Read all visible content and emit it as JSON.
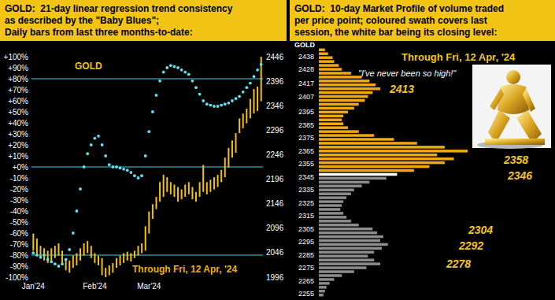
{
  "chart_data": [
    {
      "type": "combo",
      "title": [
        "GOLD:  21-day linear regression trend consistency",
        "as described by the \"Baby Blues\";",
        "Daily bars from last three months-to-date:"
      ],
      "date_label": "Through Fri, 12 Apr, '24",
      "categories": [
        "Jan'24",
        null,
        null,
        null,
        null,
        null,
        null,
        null,
        null,
        null,
        null,
        null,
        null,
        null,
        null,
        null,
        null,
        "Feb'24",
        null,
        null,
        null,
        null,
        null,
        null,
        null,
        null,
        null,
        null,
        null,
        null,
        null,
        null,
        "Mar'24",
        null,
        null,
        null,
        null,
        null,
        null,
        null,
        null,
        null,
        null,
        null,
        null,
        null,
        null,
        null,
        null,
        null,
        null,
        null,
        null,
        null,
        null,
        null,
        null,
        null,
        null,
        null,
        null,
        null,
        null,
        null
      ],
      "series": [
        {
          "name": "GOLD",
          "type": "range",
          "axis": "y2",
          "color": "#f5c400",
          "low": [
            2050,
            2040,
            2035,
            2030,
            2025,
            2030,
            2035,
            2040,
            2025,
            2010,
            2005,
            2015,
            2020,
            2030,
            2040,
            2045,
            2035,
            2025,
            2020,
            2000,
            1995,
            2000,
            2005,
            2015,
            2020,
            2025,
            2030,
            2028,
            2035,
            2040,
            2045,
            2050,
            2085,
            2115,
            2135,
            2150,
            2160,
            2170,
            2165,
            2160,
            2150,
            2155,
            2160,
            2165,
            2155,
            2150,
            2160,
            2170,
            2165,
            2170,
            2175,
            2180,
            2190,
            2200,
            2220,
            2240,
            2250,
            2290,
            2300,
            2310,
            2320,
            2330,
            2335,
            2355
          ],
          "high": [
            2085,
            2075,
            2060,
            2055,
            2050,
            2055,
            2060,
            2065,
            2050,
            2035,
            2030,
            2040,
            2045,
            2055,
            2065,
            2070,
            2060,
            2045,
            2040,
            2035,
            2015,
            2020,
            2025,
            2035,
            2040,
            2045,
            2048,
            2045,
            2050,
            2060,
            2065,
            2100,
            2130,
            2145,
            2160,
            2190,
            2205,
            2200,
            2190,
            2185,
            2180,
            2175,
            2185,
            2190,
            2180,
            2170,
            2190,
            2225,
            2190,
            2195,
            2200,
            2205,
            2215,
            2240,
            2260,
            2275,
            2290,
            2320,
            2330,
            2340,
            2360,
            2380,
            2385,
            2448
          ]
        },
        {
          "type": "scatter",
          "marker": "circle",
          "color": "#5ce1f2",
          "values": [
            -78,
            -80,
            -82,
            -80,
            -84,
            -86,
            -88,
            -90,
            -88,
            -84,
            -75,
            -60,
            -40,
            -20,
            0,
            12,
            20,
            26,
            28,
            20,
            10,
            2,
            0,
            0,
            -1,
            -2,
            -3,
            -5,
            -8,
            -10,
            -8,
            10,
            32,
            50,
            65,
            78,
            86,
            90,
            92,
            91,
            90,
            88,
            86,
            84,
            78,
            72,
            66,
            60,
            57,
            56,
            55,
            55,
            56,
            57,
            58,
            60,
            62,
            64,
            68,
            72,
            76,
            82,
            88,
            93
          ]
        }
      ],
      "ylim": [
        -100,
        100
      ],
      "yticks": [
        {
          "value": 100,
          "label": "+100%"
        },
        {
          "value": 90,
          "label": "+90%"
        },
        {
          "value": 80,
          "label": "+80%"
        },
        {
          "value": 70,
          "label": "+70%"
        },
        {
          "value": 60,
          "label": "+60%"
        },
        {
          "value": 50,
          "label": "+50%"
        },
        {
          "value": 40,
          "label": "+40%"
        },
        {
          "value": 30,
          "label": "+30%"
        },
        {
          "value": 20,
          "label": "+20%"
        },
        {
          "value": 10,
          "label": "+10%"
        },
        {
          "value": 0,
          "label": "+0%"
        },
        {
          "value": -10,
          "label": "-10%"
        },
        {
          "value": -20,
          "label": "-20%"
        },
        {
          "value": -30,
          "label": "-30%"
        },
        {
          "value": -40,
          "label": "-40%"
        },
        {
          "value": -50,
          "label": "-50%"
        },
        {
          "value": -60,
          "label": "-60%"
        },
        {
          "value": -70,
          "label": "-70%"
        },
        {
          "value": -80,
          "label": "-80%"
        },
        {
          "value": -90,
          "label": "-90%"
        },
        {
          "value": -100,
          "label": "-100%"
        }
      ],
      "y2lim": [
        1996,
        2446
      ],
      "y2ticks": [
        2446,
        2396,
        2346,
        2296,
        2246,
        2196,
        2146,
        2096,
        2046,
        1996
      ],
      "hlines": [
        80,
        0,
        -80
      ]
    },
    {
      "type": "bar",
      "orientation": "horizontal",
      "title": [
        "GOLD:  10-day Market Profile of volume traded",
        "per price point; coloured swath covers last",
        "session, the white bar being its closing level:"
      ],
      "ylabel": "GOLD",
      "date_label": "Through Fri, 12 Apr, '24",
      "quote": "\"I've never been so high!\"",
      "y": [
        2254,
        2257,
        2260,
        2263,
        2266,
        2269,
        2272,
        2275,
        2278,
        2281,
        2284,
        2287,
        2290,
        2293,
        2296,
        2299,
        2302,
        2305,
        2308,
        2311,
        2314,
        2317,
        2320,
        2323,
        2326,
        2329,
        2332,
        2335,
        2338,
        2341,
        2344,
        2347,
        2350,
        2353,
        2356,
        2359,
        2362,
        2365,
        2368,
        2371,
        2374,
        2377,
        2380,
        2383,
        2386,
        2389,
        2392,
        2395,
        2398,
        2401,
        2404,
        2407,
        2410,
        2413,
        2416,
        2419,
        2422,
        2425,
        2428,
        2431,
        2434,
        2437,
        2440,
        2443
      ],
      "values": [
        3,
        4,
        5,
        7,
        10,
        15,
        23,
        31,
        40,
        36,
        32,
        36,
        41,
        45,
        40,
        42,
        38,
        35,
        26,
        21,
        18,
        16,
        14,
        15,
        16,
        18,
        21,
        23,
        28,
        33,
        44,
        51,
        62,
        72,
        82,
        88,
        77,
        97,
        82,
        64,
        49,
        36,
        26,
        19,
        16,
        15,
        16,
        19,
        23,
        26,
        30,
        32,
        35,
        40,
        37,
        33,
        28,
        21,
        15,
        13,
        10,
        9,
        6,
        4
      ],
      "colors": [
        "#8c8c8c",
        "#8c8c8c",
        "#8c8c8c",
        "#8c8c8c",
        "#8c8c8c",
        "#8c8c8c",
        "#8c8c8c",
        "#8c8c8c",
        "#8c8c8c",
        "#8c8c8c",
        "#8c8c8c",
        "#8c8c8c",
        "#8c8c8c",
        "#8c8c8c",
        "#8c8c8c",
        "#8c8c8c",
        "#8c8c8c",
        "#8c8c8c",
        "#8c8c8c",
        "#8c8c8c",
        "#8c8c8c",
        "#8c8c8c",
        "#8c8c8c",
        "#8c8c8c",
        "#8c8c8c",
        "#8c8c8c",
        "#8c8c8c",
        "#8c8c8c",
        "#8c8c8c",
        "#8c8c8c",
        "#8c8c8c",
        "#ffffff",
        "#f0a810",
        "#f0a810",
        "#f0a810",
        "#f0a810",
        "#f0a810",
        "#f0a810",
        "#f0a810",
        "#f0a810",
        "#f0a810",
        "#f0a810",
        "#f0a810",
        "#f0a810",
        "#f0a810",
        "#f0a810",
        "#f0a810",
        "#f0a810",
        "#f0a810",
        "#f0a810",
        "#f0a810",
        "#f0a810",
        "#f0a810",
        "#f0a810",
        "#f0a810",
        "#f0a810",
        "#f0a810",
        "#f0a810",
        "#f0a810",
        "#f0a810",
        "#f0a810",
        "#f0a810",
        "#f0a810",
        "#f0a810"
      ],
      "xlim": [
        0,
        100
      ],
      "ylim": [
        2252,
        2445
      ],
      "yticks": [
        2438,
        2428,
        2417,
        2407,
        2395,
        2385,
        2375,
        2365,
        2355,
        2345,
        2335,
        2325,
        2315,
        2305,
        2295,
        2285,
        2275,
        2265,
        2255
      ],
      "tick_labels": "y",
      "annotations": [
        2413,
        2358,
        2346,
        2304,
        2292,
        2278
      ]
    }
  ]
}
